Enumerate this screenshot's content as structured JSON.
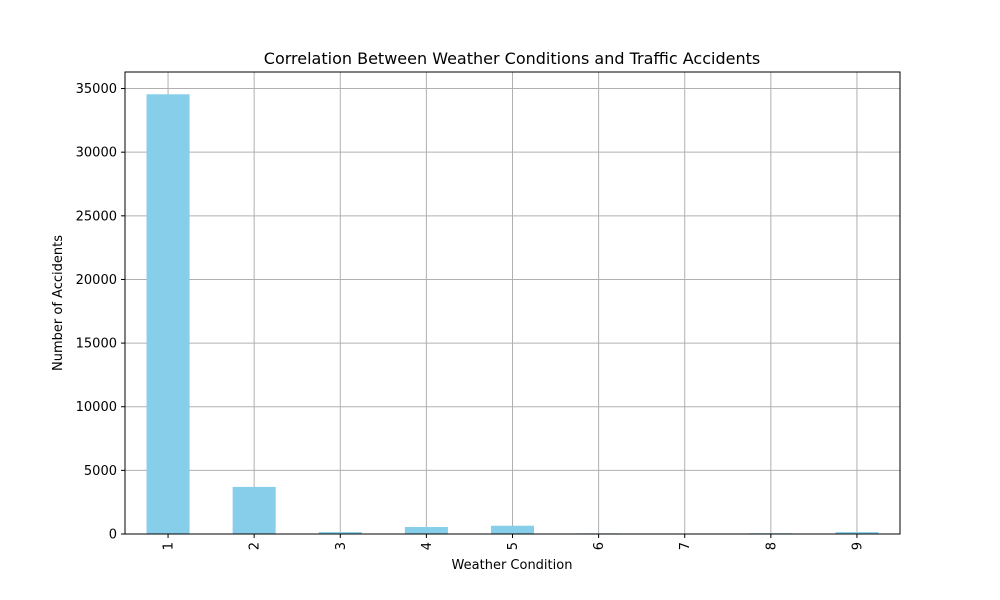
{
  "chart_data": {
    "type": "bar",
    "title": "Correlation Between Weather Conditions and Traffic Accidents",
    "xlabel": "Weather Condition",
    "ylabel": "Number of Accidents",
    "categories": [
      "1",
      "2",
      "3",
      "4",
      "5",
      "6",
      "7",
      "8",
      "9"
    ],
    "values": [
      34550,
      3700,
      150,
      550,
      650,
      50,
      10,
      60,
      150
    ],
    "ylim": [
      0,
      36300
    ],
    "yticks": [
      0,
      5000,
      10000,
      15000,
      20000,
      25000,
      30000,
      35000
    ],
    "ytick_labels": [
      "0",
      "5000",
      "10000",
      "15000",
      "20000",
      "25000",
      "30000",
      "35000"
    ],
    "grid": true,
    "bar_color": "#87ceeb",
    "xtick_rotation": "vertical"
  }
}
